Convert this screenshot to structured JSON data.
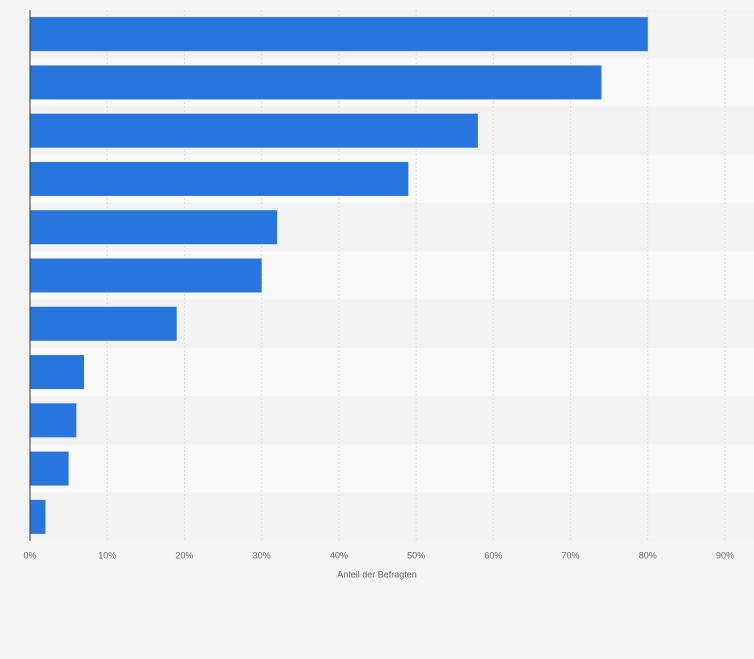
{
  "chart_data": {
    "type": "barh",
    "categories": [
      null,
      null,
      null,
      null,
      null,
      null,
      null,
      null,
      null,
      null,
      null
    ],
    "values": [
      80,
      74,
      58,
      49,
      32,
      30,
      19,
      7,
      6,
      5,
      2
    ],
    "color": "#2876dd",
    "xlabel": "Anteil der Befragten",
    "xlim": [
      0,
      90
    ],
    "xticks": [
      {
        "value": 0,
        "label": "0%"
      },
      {
        "value": 10,
        "label": "10%"
      },
      {
        "value": 20,
        "label": "20%"
      },
      {
        "value": 30,
        "label": "30%"
      },
      {
        "value": 40,
        "label": "40%"
      },
      {
        "value": 50,
        "label": "50%"
      },
      {
        "value": 60,
        "label": "60%"
      },
      {
        "value": 70,
        "label": "70%"
      },
      {
        "value": 80,
        "label": "80%"
      },
      {
        "value": 90,
        "label": "90%"
      }
    ],
    "grid": true
  }
}
